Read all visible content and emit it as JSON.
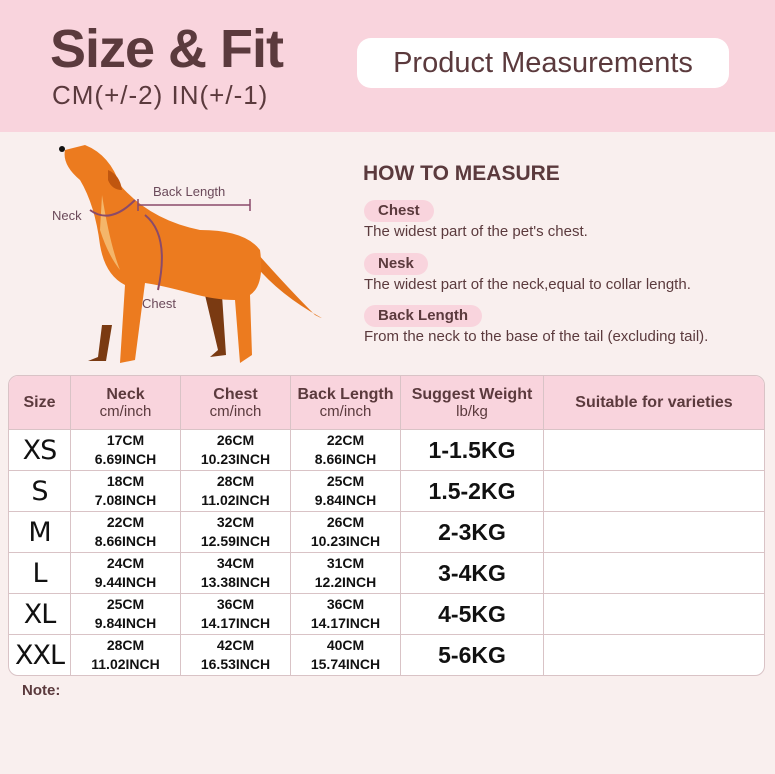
{
  "header": {
    "title": "Size & Fit",
    "subtitle": "CM(+/-2) IN(+/-1)",
    "badge": "Product Measurements"
  },
  "diagram": {
    "labels": {
      "neck": "Neck",
      "back": "Back Length",
      "chest": "Chest"
    }
  },
  "how_to": {
    "title": "HOW TO MEASURE",
    "items": [
      {
        "label": "Chest",
        "desc": "The widest part of the pet's chest."
      },
      {
        "label": "Nesk",
        "desc": "The widest part of the neck,equal to collar length."
      },
      {
        "label": "Back Length",
        "desc": "From the neck to the base of the tail (excluding tail)."
      }
    ]
  },
  "table": {
    "headers": [
      {
        "t": "Size",
        "s": ""
      },
      {
        "t": "Neck",
        "s": "cm/inch"
      },
      {
        "t": "Chest",
        "s": "cm/inch"
      },
      {
        "t": "Back Length",
        "s": "cm/inch"
      },
      {
        "t": "Suggest Weight",
        "s": "lb/kg"
      },
      {
        "t": "Suitable for varieties",
        "s": ""
      }
    ],
    "rows": [
      [
        "XS",
        "17CM",
        "6.69INCH",
        "26CM",
        "10.23INCH",
        "22CM",
        "8.66INCH",
        "1-1.5KG",
        ""
      ],
      [
        "S",
        "18CM",
        "7.08INCH",
        "28CM",
        "11.02INCH",
        "25CM",
        "9.84INCH",
        "1.5-2KG",
        ""
      ],
      [
        "M",
        "22CM",
        "8.66INCH",
        "32CM",
        "12.59INCH",
        "26CM",
        "10.23INCH",
        "2-3KG",
        ""
      ],
      [
        "L",
        "24CM",
        "9.44INCH",
        "34CM",
        "13.38INCH",
        "31CM",
        "12.2INCH",
        "3-4KG",
        ""
      ],
      [
        "XL",
        "25CM",
        "9.84INCH",
        "36CM",
        "14.17INCH",
        "36CM",
        "14.17INCH",
        "4-5KG",
        ""
      ],
      [
        "XXL",
        "28CM",
        "11.02INCH",
        "42CM",
        "16.53INCH",
        "40CM",
        "15.74INCH",
        "5-6KG",
        ""
      ]
    ]
  },
  "note": "Note:"
}
